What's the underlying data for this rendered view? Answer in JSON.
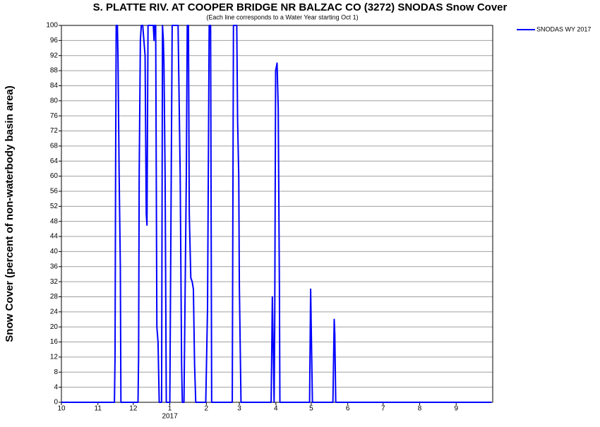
{
  "chart_data": {
    "type": "line",
    "title": "S. PLATTE RIV. AT COOPER BRIDGE NR BALZAC CO (3272) SNODAS Snow Cover",
    "subtitle": "(Each line corresponds to a Water Year starting Oct 1)",
    "y_label": "Snow Cover (percent of non-waterbody basin area)",
    "x_year_label": "2017",
    "x": [
      0,
      45,
      45.5,
      46,
      46.5,
      47.5,
      48,
      49,
      50,
      50.5,
      65,
      65.5,
      66,
      67,
      67.8,
      69,
      70,
      71,
      72,
      72.6,
      73.5,
      75,
      78,
      78.6,
      79,
      80,
      80.5,
      81,
      82,
      83,
      85,
      85.8,
      86.5,
      87,
      88,
      89,
      92,
      94,
      97.8,
      99,
      100.8,
      102,
      102.6,
      104,
      105,
      106,
      106.8,
      107.8,
      108.5,
      109.8,
      111,
      112,
      113,
      114,
      122.5,
      124,
      125.4,
      126.6,
      127.5,
      145,
      146,
      148.8,
      149.5,
      150.5,
      151,
      152.4,
      178,
      179,
      180,
      180.5,
      181,
      181.8,
      183,
      184,
      185,
      185.4,
      210.6,
      211.5,
      212,
      213,
      230.4,
      231.5,
      232,
      232.8,
      365
    ],
    "series": [
      {
        "name": "SNODAS WY 2017",
        "color": "#0000ff",
        "values": [
          0,
          0,
          12,
          62,
          100,
          100,
          92,
          60,
          36,
          0,
          0,
          12,
          60,
          96,
          100,
          100,
          96,
          92,
          50,
          47,
          100,
          100,
          100,
          96,
          100,
          100,
          60,
          20,
          16,
          0,
          0,
          100,
          96,
          90,
          60,
          0,
          0,
          100,
          100,
          100,
          60,
          10,
          0,
          0,
          30,
          60,
          100,
          100,
          50,
          33,
          32,
          30,
          10,
          0,
          0,
          25,
          100,
          100,
          0,
          0,
          100,
          100,
          75,
          60,
          31,
          0,
          0,
          28,
          10,
          0,
          20,
          88,
          90,
          78,
          30,
          0,
          0,
          30,
          20,
          0,
          0,
          22,
          18,
          0,
          0
        ]
      }
    ],
    "xlim": [
      0,
      366
    ],
    "xticks": [
      {
        "value": 0,
        "label": "10"
      },
      {
        "value": 31,
        "label": "11"
      },
      {
        "value": 61,
        "label": "12"
      },
      {
        "value": 92,
        "label": "1"
      },
      {
        "value": 123,
        "label": "2"
      },
      {
        "value": 151,
        "label": "3"
      },
      {
        "value": 182,
        "label": "4"
      },
      {
        "value": 212,
        "label": "5"
      },
      {
        "value": 243,
        "label": "6"
      },
      {
        "value": 273,
        "label": "7"
      },
      {
        "value": 304,
        "label": "8"
      },
      {
        "value": 335,
        "label": "9"
      }
    ],
    "ylim": [
      0,
      100
    ],
    "yticks": [
      0,
      4,
      8,
      12,
      16,
      20,
      24,
      28,
      32,
      36,
      40,
      44,
      48,
      52,
      56,
      60,
      64,
      68,
      72,
      76,
      80,
      84,
      88,
      92,
      96,
      100
    ],
    "grid": true,
    "legend": "top-right"
  }
}
